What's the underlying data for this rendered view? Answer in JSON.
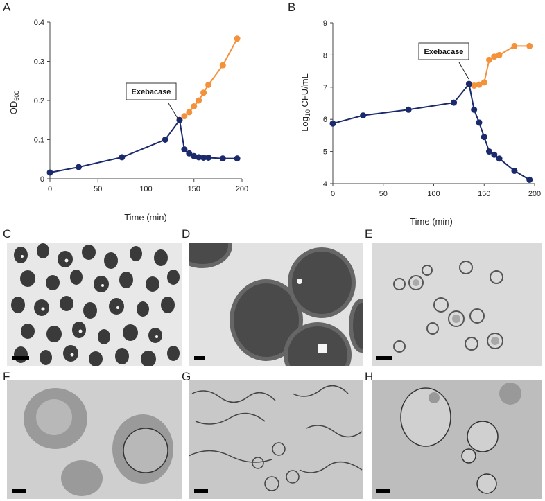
{
  "chart_data": [
    {
      "panel": "A",
      "type": "line",
      "xlabel": "Time (min)",
      "ylabel": "OD600",
      "xlim": [
        0,
        200
      ],
      "ylim": [
        0,
        0.4
      ],
      "xticks": [
        "0",
        "50",
        "100",
        "150",
        "200"
      ],
      "yticks": [
        "0",
        "0.1",
        "0.2",
        "0.3",
        "0.4"
      ],
      "annotation": {
        "text": "Exebacase",
        "x": 135,
        "y": 0.15
      },
      "grid": false,
      "series": [
        {
          "color": "#1a2a6c",
          "x": [
            0,
            30,
            75,
            120,
            135,
            140,
            145,
            150,
            155,
            160,
            165,
            180,
            195
          ],
          "y": [
            0.016,
            0.03,
            0.055,
            0.1,
            0.15,
            0.075,
            0.065,
            0.058,
            0.055,
            0.054,
            0.054,
            0.052,
            0.052
          ]
        },
        {
          "color": "#f4913b",
          "x": [
            135,
            140,
            145,
            150,
            155,
            160,
            165,
            180,
            195
          ],
          "y": [
            0.15,
            0.16,
            0.17,
            0.185,
            0.2,
            0.22,
            0.24,
            0.29,
            0.358
          ]
        }
      ]
    },
    {
      "panel": "B",
      "type": "line",
      "xlabel": "Time (min)",
      "ylabel": "Log10 CFU/mL",
      "xlim": [
        0,
        200
      ],
      "ylim": [
        4,
        9
      ],
      "xticks": [
        "0",
        "50",
        "100",
        "150",
        "200"
      ],
      "yticks": [
        "4",
        "5",
        "6",
        "7",
        "8",
        "9"
      ],
      "annotation": {
        "text": "Exebacase",
        "x": 135,
        "y": 7.1
      },
      "grid": false,
      "series": [
        {
          "color": "#1a2a6c",
          "x": [
            0,
            30,
            75,
            120,
            135,
            140,
            145,
            150,
            155,
            160,
            165,
            180,
            195
          ],
          "y": [
            5.87,
            6.12,
            6.3,
            6.52,
            7.1,
            6.3,
            5.9,
            5.45,
            5.0,
            4.9,
            4.78,
            4.4,
            4.12
          ]
        },
        {
          "color": "#f4913b",
          "x": [
            135,
            140,
            145,
            150,
            155,
            160,
            165,
            180,
            195
          ],
          "y": [
            7.1,
            7.05,
            7.08,
            7.15,
            7.85,
            7.95,
            8.0,
            8.28,
            8.28
          ]
        }
      ]
    }
  ],
  "panels": {
    "C": "C",
    "D": "D",
    "E": "E",
    "F": "F",
    "G": "G",
    "H": "H"
  },
  "colors": {
    "control": "#f4913b",
    "treated": "#1a2a6c"
  }
}
